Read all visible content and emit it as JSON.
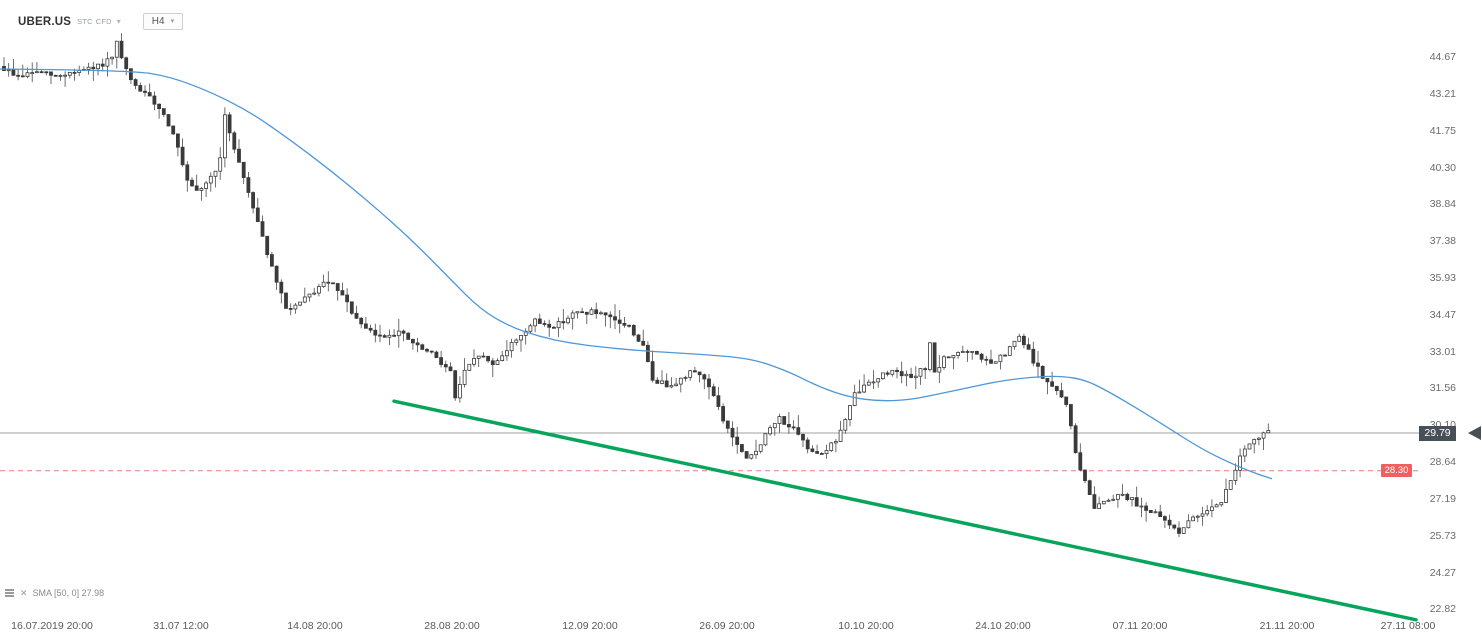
{
  "header": {
    "symbol": "UBER.US",
    "market": "STC",
    "instrument_type": "CFD",
    "timeframe": "H4"
  },
  "indicator": {
    "label": "SMA [50, 0]",
    "value": "27.98"
  },
  "price_scale": {
    "current_price": "29.79",
    "alert_price": "28.30"
  },
  "colors": {
    "background": "#ffffff",
    "candle_up": "#ffffff",
    "candle_down": "#3a3a3a",
    "candle_border": "#3a3a3a",
    "wick": "#4a4a4a",
    "sma": "#4e97d9",
    "trendline": "#07a45b",
    "current_price_line": "#a0a0a0",
    "alert_line": "#e57e78",
    "alert_badge": "#f25f5f",
    "current_badge": "#485057",
    "axis_text": "#6b6b6b"
  },
  "chart_data": {
    "type": "candlestick",
    "symbol": "UBER.US",
    "timeframe": "H4",
    "grid": "off",
    "ylim": [
      21.48,
      46.93
    ],
    "y_ticks": [
      "44.67",
      "43.21",
      "41.75",
      "40.30",
      "38.84",
      "37.38",
      "35.93",
      "34.47",
      "33.01",
      "31.56",
      "30.10",
      "28.64",
      "27.19",
      "25.73",
      "24.27",
      "22.82"
    ],
    "x_ticks": [
      {
        "label": "16.07.2019 20:00",
        "x": 52
      },
      {
        "label": "31.07 12:00",
        "x": 181
      },
      {
        "label": "14.08 20:00",
        "x": 315
      },
      {
        "label": "28.08 20:00",
        "x": 452
      },
      {
        "label": "12.09 20:00",
        "x": 590
      },
      {
        "label": "26.09 20:00",
        "x": 727
      },
      {
        "label": "10.10 20:00",
        "x": 866
      },
      {
        "label": "24.10 20:00",
        "x": 1003
      },
      {
        "label": "07.11 20:00",
        "x": 1140
      },
      {
        "label": "21.11 20:00",
        "x": 1287
      },
      {
        "label": "27.11 08:00",
        "x": 1408
      }
    ],
    "levels": [
      {
        "name": "current-price-line",
        "price": 29.79,
        "style": "solid",
        "color": "#a0a0a0",
        "interactable": false
      },
      {
        "name": "alert-price-line",
        "price": 28.3,
        "style": "dashed",
        "color": "#e57e78",
        "interactable": true
      }
    ],
    "trendline": {
      "x1": 394,
      "price1": 31.05,
      "x2": 1416,
      "price2": 22.4,
      "color": "#07a45b"
    },
    "sma": {
      "period": 50,
      "shift": 0,
      "last_value": 27.98
    },
    "sma_anchors": [
      [
        0,
        44.2
      ],
      [
        130,
        44.15
      ],
      [
        170,
        43.9
      ],
      [
        210,
        43.3
      ],
      [
        250,
        42.5
      ],
      [
        290,
        41.4
      ],
      [
        330,
        40.2
      ],
      [
        370,
        38.9
      ],
      [
        410,
        37.5
      ],
      [
        450,
        35.9
      ],
      [
        480,
        34.7
      ],
      [
        510,
        34.0
      ],
      [
        540,
        33.6
      ],
      [
        570,
        33.35
      ],
      [
        600,
        33.2
      ],
      [
        640,
        33.05
      ],
      [
        680,
        32.95
      ],
      [
        720,
        32.85
      ],
      [
        755,
        32.7
      ],
      [
        790,
        32.2
      ],
      [
        820,
        31.6
      ],
      [
        850,
        31.2
      ],
      [
        880,
        31.05
      ],
      [
        910,
        31.1
      ],
      [
        940,
        31.35
      ],
      [
        970,
        31.6
      ],
      [
        1000,
        31.85
      ],
      [
        1030,
        32.0
      ],
      [
        1060,
        32.05
      ],
      [
        1085,
        31.9
      ],
      [
        1110,
        31.4
      ],
      [
        1140,
        30.7
      ],
      [
        1170,
        29.95
      ],
      [
        1200,
        29.2
      ],
      [
        1230,
        28.6
      ],
      [
        1255,
        28.2
      ],
      [
        1272,
        27.98
      ]
    ],
    "price_anchors": [
      [
        0,
        44.3
      ],
      [
        4,
        43.9
      ],
      [
        8,
        44.1
      ],
      [
        12,
        43.9
      ],
      [
        16,
        44.1
      ],
      [
        20,
        44.2
      ],
      [
        24,
        44.6
      ],
      [
        25,
        45.2
      ],
      [
        26,
        44.6
      ],
      [
        28,
        43.7
      ],
      [
        31,
        43.2
      ],
      [
        34,
        42.7
      ],
      [
        37,
        41.7
      ],
      [
        40,
        39.7
      ],
      [
        42,
        39.3
      ],
      [
        45,
        39.9
      ],
      [
        47,
        40.6
      ],
      [
        48,
        42.3
      ],
      [
        50,
        41.1
      ],
      [
        52,
        39.9
      ],
      [
        55,
        38.2
      ],
      [
        58,
        36.3
      ],
      [
        61,
        34.7
      ],
      [
        64,
        34.9
      ],
      [
        67,
        35.4
      ],
      [
        70,
        35.8
      ],
      [
        73,
        35.2
      ],
      [
        77,
        34.0
      ],
      [
        81,
        33.6
      ],
      [
        85,
        33.8
      ],
      [
        89,
        33.2
      ],
      [
        93,
        32.8
      ],
      [
        96,
        32.2
      ],
      [
        97,
        31.2
      ],
      [
        99,
        32.2
      ],
      [
        102,
        32.9
      ],
      [
        105,
        32.5
      ],
      [
        108,
        33.1
      ],
      [
        111,
        33.7
      ],
      [
        114,
        34.2
      ],
      [
        118,
        34.0
      ],
      [
        122,
        34.5
      ],
      [
        126,
        34.6
      ],
      [
        130,
        34.3
      ],
      [
        134,
        34.0
      ],
      [
        137,
        33.2
      ],
      [
        139,
        31.9
      ],
      [
        142,
        31.7
      ],
      [
        145,
        31.9
      ],
      [
        148,
        32.3
      ],
      [
        151,
        31.7
      ],
      [
        154,
        30.3
      ],
      [
        157,
        29.3
      ],
      [
        159,
        28.7
      ],
      [
        161,
        29.1
      ],
      [
        163,
        29.7
      ],
      [
        166,
        30.4
      ],
      [
        169,
        29.9
      ],
      [
        172,
        29.2
      ],
      [
        175,
        29.0
      ],
      [
        178,
        29.5
      ],
      [
        180,
        30.3
      ],
      [
        182,
        31.3
      ],
      [
        185,
        31.8
      ],
      [
        188,
        32.1
      ],
      [
        191,
        32.3
      ],
      [
        194,
        31.9
      ],
      [
        197,
        32.4
      ],
      [
        198,
        33.4
      ],
      [
        199,
        32.1
      ],
      [
        201,
        32.7
      ],
      [
        204,
        33.0
      ],
      [
        208,
        32.9
      ],
      [
        211,
        32.5
      ],
      [
        214,
        32.9
      ],
      [
        217,
        33.6
      ],
      [
        219,
        33.0
      ],
      [
        222,
        32.0
      ],
      [
        225,
        31.4
      ],
      [
        227,
        31.0
      ],
      [
        229,
        29.0
      ],
      [
        231,
        27.8
      ],
      [
        233,
        26.9
      ],
      [
        236,
        27.2
      ],
      [
        239,
        27.4
      ],
      [
        242,
        27.0
      ],
      [
        245,
        26.7
      ],
      [
        248,
        26.3
      ],
      [
        251,
        25.9
      ],
      [
        254,
        26.4
      ],
      [
        257,
        26.8
      ],
      [
        260,
        27.1
      ],
      [
        262,
        27.9
      ],
      [
        264,
        28.9
      ],
      [
        266,
        29.3
      ],
      [
        268,
        29.6
      ],
      [
        269,
        29.79
      ]
    ],
    "candles": {
      "count": 270,
      "x0": 4,
      "dx": 4.7,
      "width": 3,
      "seed": 9
    }
  }
}
